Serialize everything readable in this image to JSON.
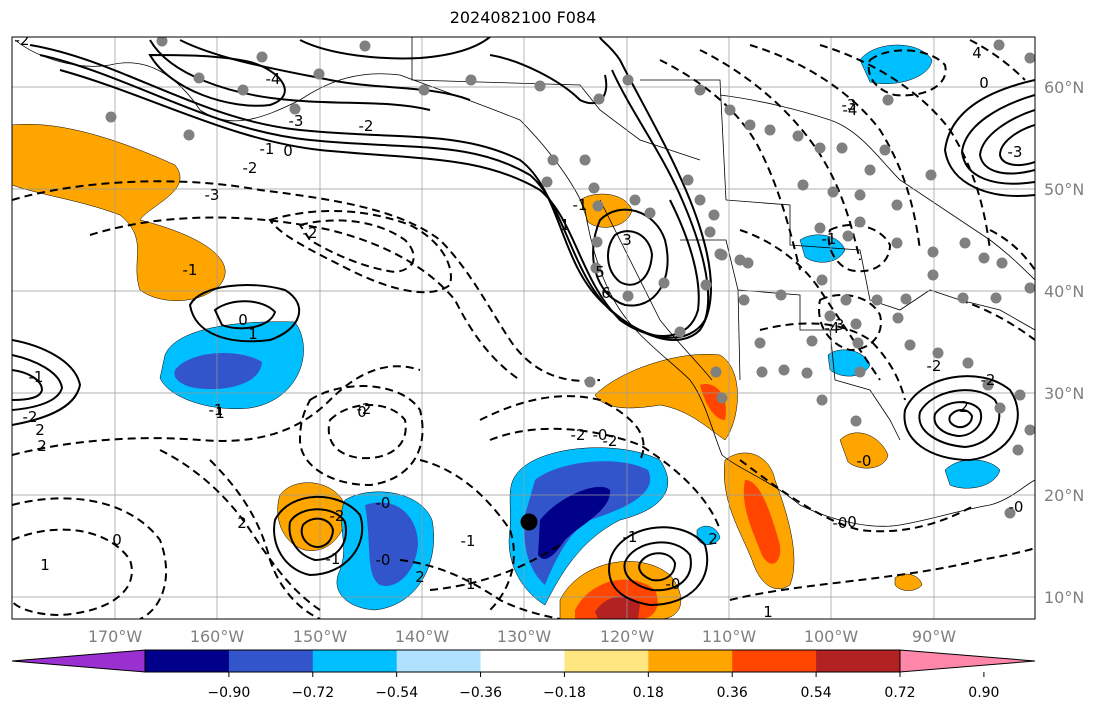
{
  "title": "2024082100 F084",
  "map": {
    "lon_labels": [
      "170°W",
      "160°W",
      "150°W",
      "140°W",
      "130°W",
      "120°W",
      "110°W",
      "100°W",
      "90°W"
    ],
    "lat_labels": [
      "60°N",
      "50°N",
      "40°N",
      "30°N",
      "20°N",
      "10°N"
    ],
    "axis_label_color": "#808080",
    "contour_color": "#000000",
    "contour_labels": [
      "-2",
      "-4",
      "-3",
      "-2",
      "-1",
      "0",
      "-2",
      "-3",
      "-2",
      "-1",
      "0",
      "1",
      "1",
      "0",
      "-1",
      "-2",
      "2",
      "2",
      "1",
      "0",
      "-2",
      "-1",
      "-0",
      "-0",
      "2",
      "-1",
      "-2",
      "-0",
      "-2",
      "-1",
      "-0",
      "2",
      "1",
      "0",
      "-0",
      "-0",
      "-3",
      "4",
      "5",
      "6",
      "3",
      "-1",
      "1",
      "-1",
      "-3",
      "-4",
      "2",
      "-2",
      "0",
      "-1",
      "2",
      "-2",
      "-1",
      "-0",
      "-2",
      "-3",
      "-4"
    ],
    "filled_anomaly_colors": {
      "positive": [
        "#ffe680",
        "#ffa500",
        "#ff4500",
        "#b22222"
      ],
      "negative": [
        "#87cefa",
        "#00bfff",
        "#3355cc",
        "#00008b"
      ]
    },
    "markers": {
      "station_dot_color": "#808080",
      "highlight_dot_color": "#000000"
    }
  },
  "colorbar": {
    "ticks": [
      "−0.90",
      "−0.72",
      "−0.54",
      "−0.36",
      "−0.18",
      "0.18",
      "0.36",
      "0.54",
      "0.72",
      "0.90"
    ],
    "colors": [
      "#9b30d0",
      "#00008b",
      "#3355cc",
      "#00bfff",
      "#b0e2ff",
      "#ffffff",
      "#ffe680",
      "#ffa500",
      "#ff4500",
      "#b22222",
      "#ff88aa"
    ]
  }
}
